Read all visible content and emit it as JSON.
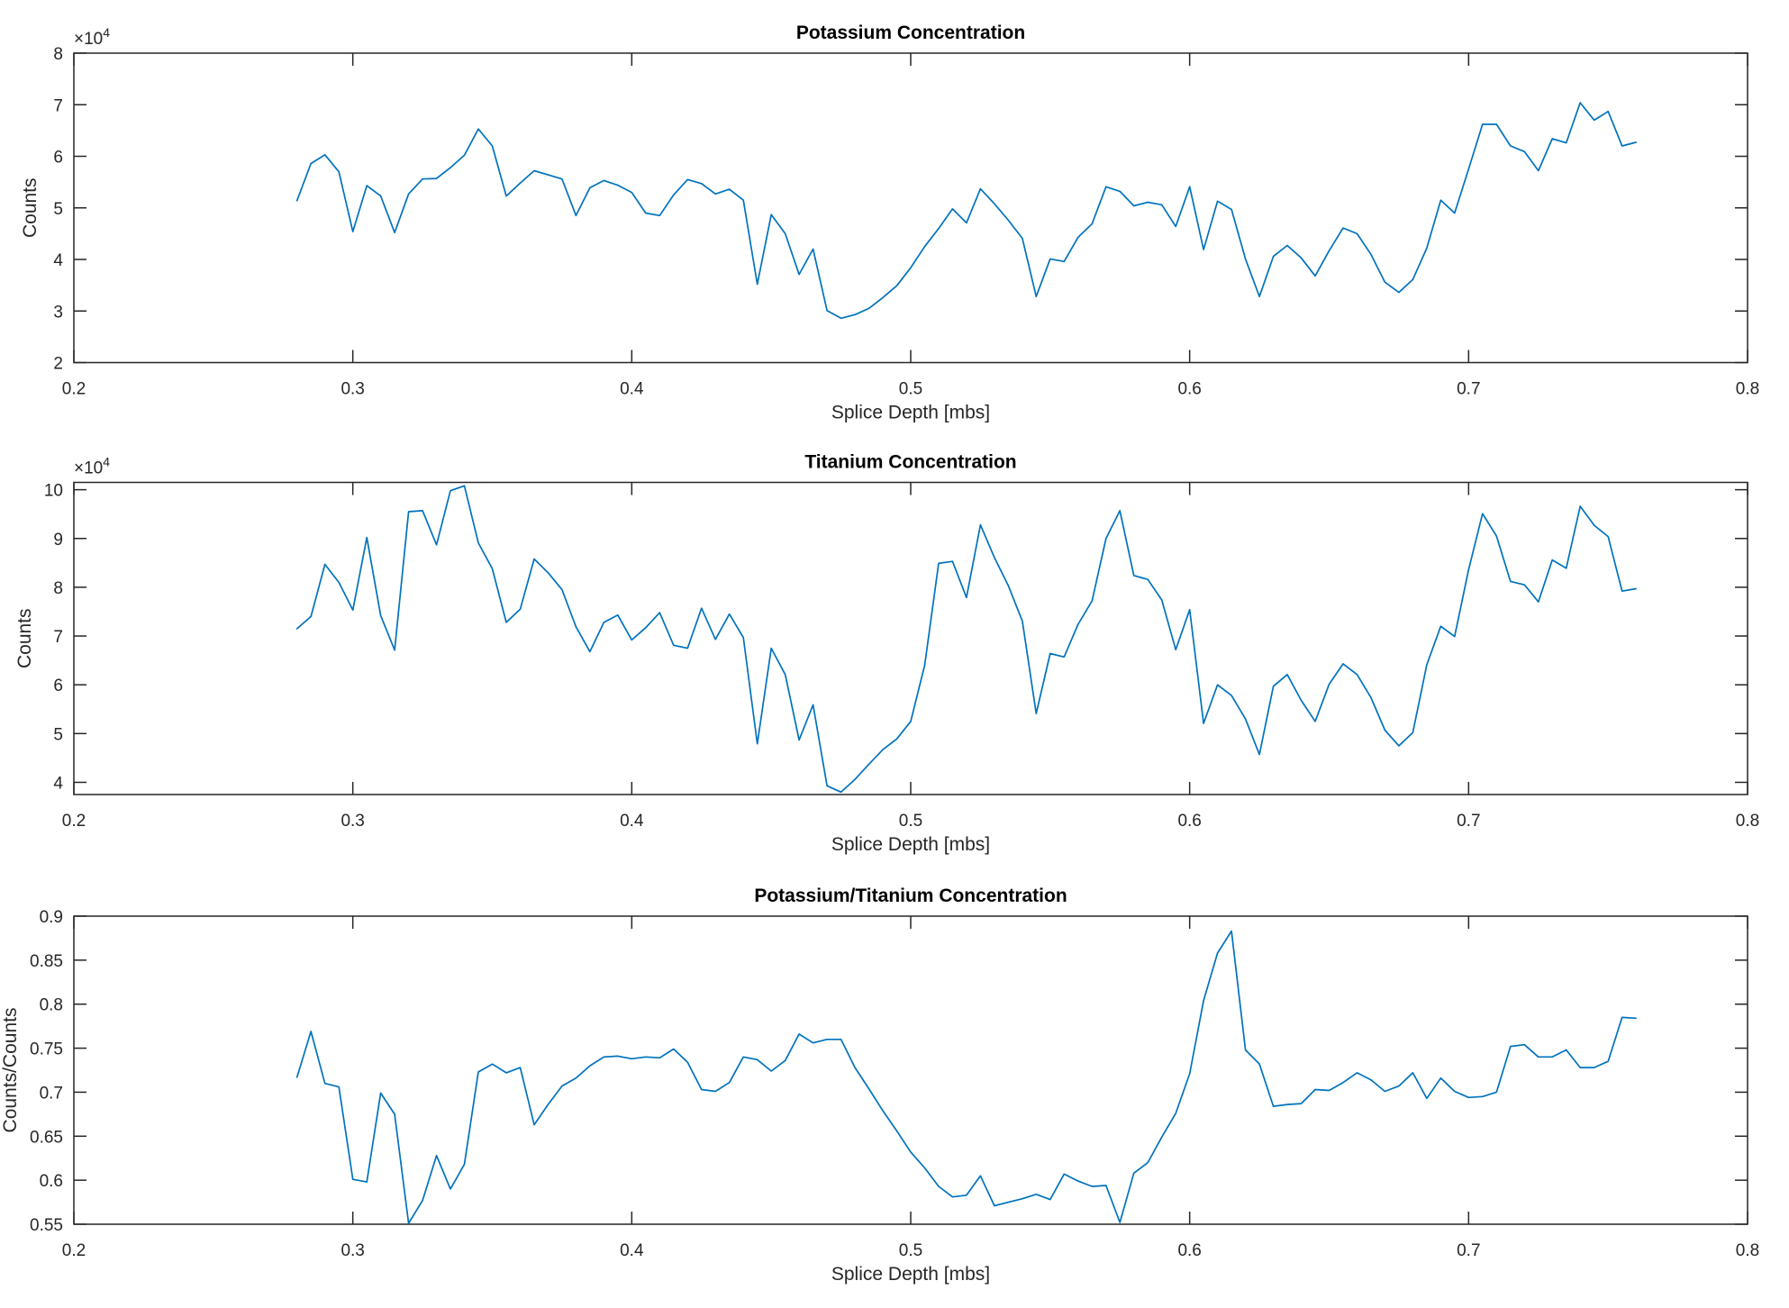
{
  "figure": {
    "background": "#ffffff",
    "line_color": "#0072BD",
    "axis_color": "#262626",
    "title_color": "#000000"
  },
  "chart_data": [
    {
      "type": "line",
      "title": "Potassium Concentration",
      "xlabel": "Splice Depth [mbs]",
      "ylabel": "Counts",
      "exponent_label": "×10^4",
      "xlim": [
        0.2,
        0.8
      ],
      "xticks": [
        0.2,
        0.3,
        0.4,
        0.5,
        0.6,
        0.7,
        0.8
      ],
      "ylim": [
        2,
        8
      ],
      "yticks": [
        2,
        3,
        4,
        5,
        6,
        7,
        8
      ],
      "grid": false,
      "legend": "none",
      "x_start": 0.28,
      "x_step": 0.005,
      "y_unit": "counts x 10^4",
      "values": [
        5.14,
        5.86,
        6.03,
        5.7,
        4.54,
        5.43,
        5.23,
        4.52,
        5.27,
        5.56,
        5.57,
        5.78,
        6.02,
        6.53,
        6.2,
        5.23,
        5.48,
        5.72,
        5.64,
        5.56,
        4.85,
        5.39,
        5.53,
        5.44,
        5.3,
        4.9,
        4.85,
        5.25,
        5.55,
        5.47,
        5.27,
        5.36,
        5.15,
        3.52,
        4.87,
        4.5,
        3.71,
        4.2,
        3.01,
        2.86,
        2.93,
        3.05,
        3.26,
        3.49,
        3.84,
        4.25,
        4.6,
        4.98,
        4.71,
        5.37,
        5.08,
        4.76,
        4.41,
        3.28,
        4.01,
        3.96,
        4.43,
        4.69,
        5.41,
        5.32,
        5.04,
        5.11,
        5.06,
        4.64,
        5.41,
        4.19,
        5.13,
        4.97,
        4.01,
        3.28,
        4.06,
        4.27,
        4.03,
        3.68,
        4.17,
        4.61,
        4.5,
        4.1,
        3.56,
        3.36,
        3.61,
        4.22,
        5.15,
        4.9,
        5.75,
        6.62,
        6.62,
        6.2,
        6.09,
        5.72,
        6.34,
        6.26,
        7.04,
        6.7,
        6.87,
        6.2,
        6.27
      ]
    },
    {
      "type": "line",
      "title": "Titanium Concentration",
      "xlabel": "Splice Depth [mbs]",
      "ylabel": "Counts",
      "exponent_label": "×10^4",
      "xlim": [
        0.2,
        0.8
      ],
      "xticks": [
        0.2,
        0.3,
        0.4,
        0.5,
        0.6,
        0.7,
        0.8
      ],
      "ylim": [
        3.75,
        10.15
      ],
      "yticks": [
        4,
        5,
        6,
        7,
        8,
        9,
        10
      ],
      "grid": false,
      "legend": "none",
      "x_start": 0.28,
      "x_step": 0.005,
      "y_unit": "counts x 10^4",
      "values": [
        7.15,
        7.4,
        8.47,
        8.1,
        7.53,
        9.02,
        7.42,
        6.71,
        9.55,
        9.57,
        8.87,
        9.98,
        10.08,
        8.91,
        8.38,
        7.28,
        7.55,
        8.58,
        8.3,
        7.95,
        7.19,
        6.68,
        7.28,
        7.43,
        6.92,
        7.17,
        7.48,
        6.81,
        6.75,
        7.57,
        6.93,
        7.45,
        6.97,
        4.79,
        6.75,
        6.21,
        4.87,
        5.59,
        3.93,
        3.8,
        4.06,
        4.37,
        4.67,
        4.89,
        5.25,
        6.4,
        8.49,
        8.53,
        7.79,
        9.28,
        8.61,
        8.03,
        7.31,
        5.41,
        6.64,
        6.57,
        7.24,
        7.72,
        9.0,
        9.57,
        8.24,
        8.16,
        7.74,
        6.72,
        7.54,
        5.21,
        6.0,
        5.78,
        5.3,
        4.57,
        5.97,
        6.21,
        5.68,
        5.25,
        6.01,
        6.43,
        6.21,
        5.74,
        5.07,
        4.75,
        5.02,
        6.41,
        7.2,
        6.99,
        8.36,
        9.51,
        9.05,
        8.12,
        8.05,
        7.7,
        8.56,
        8.39,
        9.66,
        9.27,
        9.04,
        7.92,
        7.97
      ]
    },
    {
      "type": "line",
      "title": "Potassium/Titanium Concentration",
      "xlabel": "Splice Depth [mbs]",
      "ylabel": "Counts/Counts",
      "exponent_label": "",
      "xlim": [
        0.2,
        0.8
      ],
      "xticks": [
        0.2,
        0.3,
        0.4,
        0.5,
        0.6,
        0.7,
        0.8
      ],
      "ylim": [
        0.55,
        0.9
      ],
      "yticks": [
        0.55,
        0.6,
        0.65,
        0.7,
        0.75,
        0.8,
        0.85,
        0.9
      ],
      "grid": false,
      "legend": "none",
      "x_start": 0.28,
      "x_step": 0.005,
      "y_unit": "ratio",
      "values": [
        0.717,
        0.769,
        0.71,
        0.706,
        0.601,
        0.598,
        0.699,
        0.675,
        0.551,
        0.577,
        0.628,
        0.59,
        0.618,
        0.723,
        0.732,
        0.722,
        0.728,
        0.663,
        0.686,
        0.707,
        0.716,
        0.73,
        0.74,
        0.741,
        0.738,
        0.74,
        0.739,
        0.749,
        0.734,
        0.703,
        0.701,
        0.711,
        0.74,
        0.737,
        0.724,
        0.736,
        0.766,
        0.756,
        0.76,
        0.76,
        0.728,
        0.704,
        0.679,
        0.656,
        0.632,
        0.614,
        0.593,
        0.581,
        0.583,
        0.605,
        0.571,
        0.575,
        0.579,
        0.584,
        0.578,
        0.607,
        0.599,
        0.593,
        0.594,
        0.552,
        0.608,
        0.62,
        0.649,
        0.676,
        0.721,
        0.804,
        0.858,
        0.883,
        0.748,
        0.732,
        0.684,
        0.686,
        0.687,
        0.703,
        0.702,
        0.711,
        0.722,
        0.714,
        0.701,
        0.707,
        0.722,
        0.693,
        0.716,
        0.701,
        0.694,
        0.695,
        0.7,
        0.752,
        0.754,
        0.74,
        0.74,
        0.748,
        0.728,
        0.728,
        0.735,
        0.785,
        0.784
      ]
    }
  ]
}
